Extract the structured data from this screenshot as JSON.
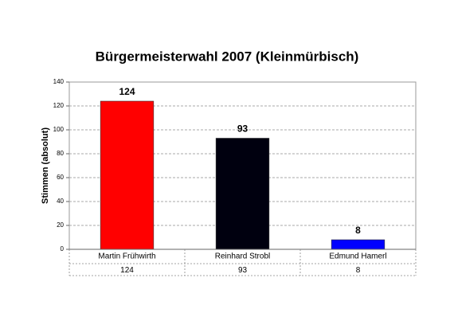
{
  "chart_data": {
    "type": "bar",
    "title": "Bürgermeisterwahl 2007 (Kleinmürbisch)",
    "y_label": "Stimmen (absolut)",
    "categories": [
      "Martin Frühwirth",
      "Reinhard Strobl",
      "Edmund Hamerl"
    ],
    "values": [
      124,
      93,
      8
    ],
    "colors": [
      "#ff0000",
      "#00000f",
      "#0000ff"
    ],
    "ylim": [
      0,
      140
    ],
    "yticks": [
      0,
      20,
      40,
      60,
      80,
      100,
      120,
      140
    ],
    "grid": true,
    "data_table": true
  }
}
